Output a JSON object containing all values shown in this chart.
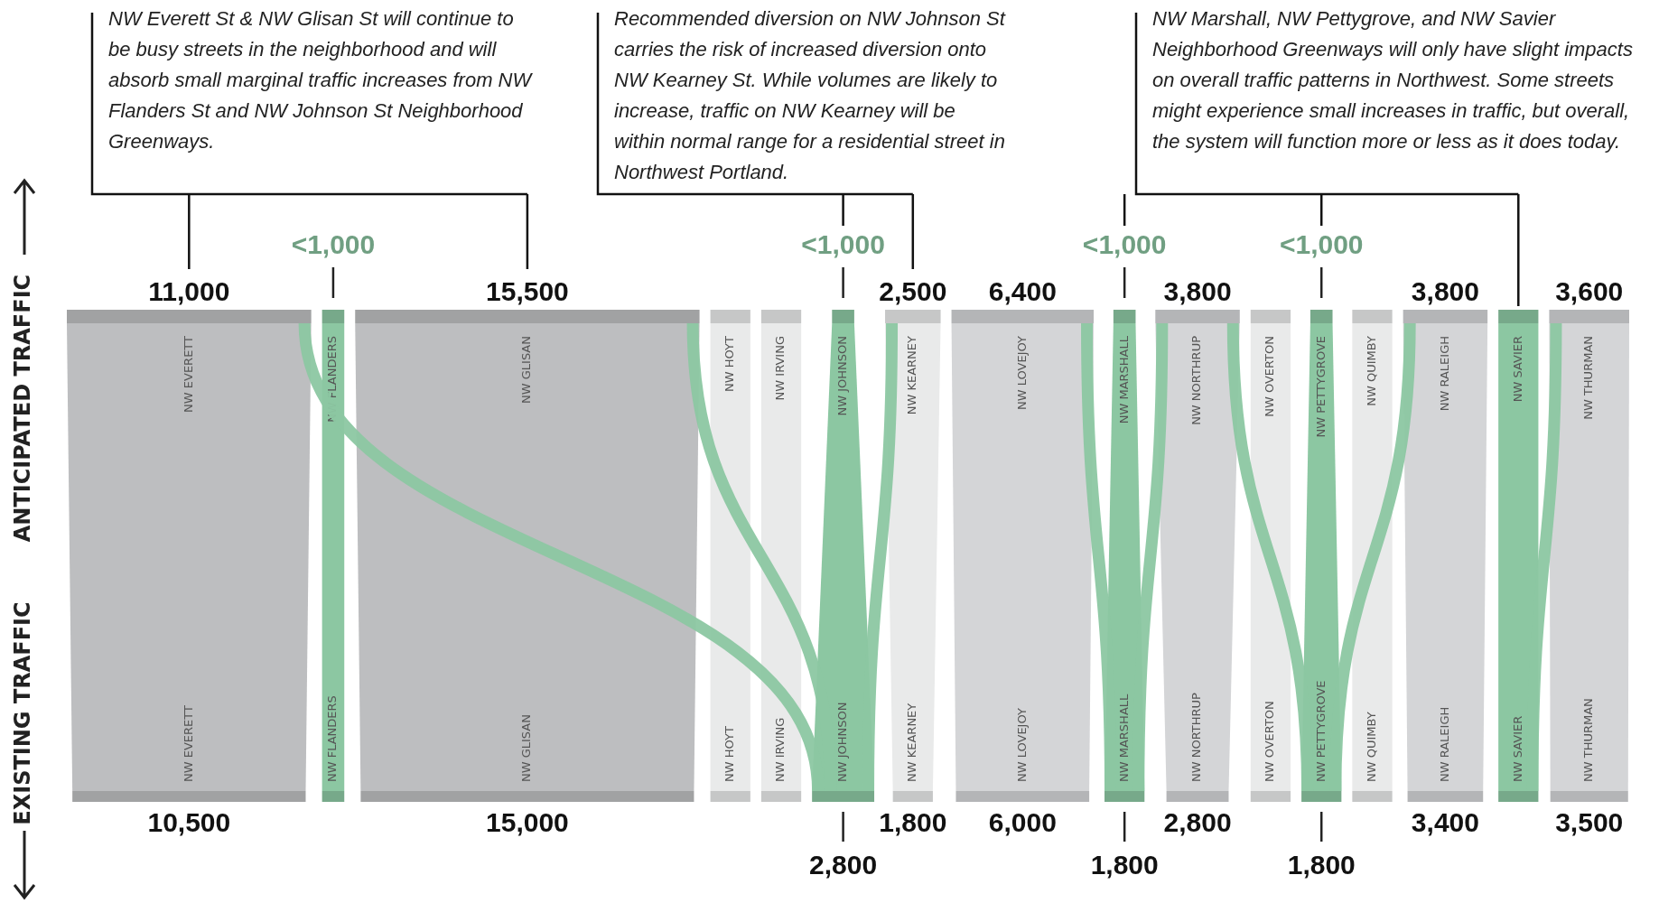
{
  "chart_data": {
    "type": "other",
    "categories": [
      "NW EVERETT",
      "NW FLANDERS",
      "NW GLISAN",
      "NW HOYT",
      "NW IRVING",
      "NW JOHNSON",
      "NW KEARNEY",
      "NW LOVEJOY",
      "NW MARSHALL",
      "NW NORTHRUP",
      "NW OVERTON",
      "NW PETTYGROVE",
      "NW QUIMBY",
      "NW RALEIGH",
      "NW SAVIER",
      "NW THURMAN"
    ],
    "series": [
      {
        "name": "ANTICIPATED TRAFFIC",
        "values": [
          11000,
          null,
          15500,
          null,
          null,
          null,
          2500,
          6400,
          null,
          3800,
          null,
          null,
          null,
          3800,
          null,
          3600
        ],
        "value_labels": [
          "11,000",
          "<1,000",
          "15,500",
          null,
          null,
          "<1,000",
          "2,500",
          "6,400",
          "<1,000",
          "3,800",
          null,
          "<1,000",
          null,
          "3,800",
          null,
          "3,600"
        ],
        "colors": [
          "#bdbec0",
          "#8cc7a2",
          "#bdbec0",
          "#e9eaea",
          "#e9eaea",
          "#8cc7a2",
          "#e9eaea",
          "#d4d5d7",
          "#8cc7a2",
          "#d4d5d7",
          "#e9eaea",
          "#8cc7a2",
          "#e9eaea",
          "#d4d5d7",
          "#8cc7a2",
          "#d4d5d7"
        ]
      },
      {
        "name": "EXISTING TRAFFIC",
        "values": [
          10500,
          null,
          15000,
          null,
          null,
          2800,
          1800,
          6000,
          1800,
          2800,
          null,
          1800,
          null,
          3400,
          null,
          3500
        ],
        "value_labels": [
          "10,500",
          null,
          "15,000",
          null,
          null,
          "2,800",
          "1,800",
          "6,000",
          "1,800",
          "2,800",
          null,
          "1,800",
          null,
          "3,400",
          null,
          "3,500"
        ],
        "colors": [
          "#bdbec0",
          "#8cc7a2",
          "#bdbec0",
          "#e9eaea",
          "#e9eaea",
          "#8cc7a2",
          "#e9eaea",
          "#d4d5d7",
          "#8cc7a2",
          "#d4d5d7",
          "#e9eaea",
          "#8cc7a2",
          "#e9eaea",
          "#d4d5d7",
          "#8cc7a2",
          "#d4d5d7"
        ]
      }
    ],
    "annotations": [
      "NW Everett St & NW Glisan St will continue to be busy streets in the neighborhood and will absorb small marginal traffic increases from NW Flanders St and NW Johnson St Neighborhood Greenways.",
      "Recommended diversion on NW Johnson St carries the risk of increased diversion onto NW Kearney St. While volumes are likely to increase, traffic on NW Kearney will be within normal range for a residential street in Northwest Portland.",
      "NW Marshall, NW Pettygrove, and NW Savier Neighborhood Greenways will only have slight impacts on overall traffic patterns in Northwest. Some streets might experience small increases in traffic, but overall, the system will function more or less as it does today."
    ]
  }
}
